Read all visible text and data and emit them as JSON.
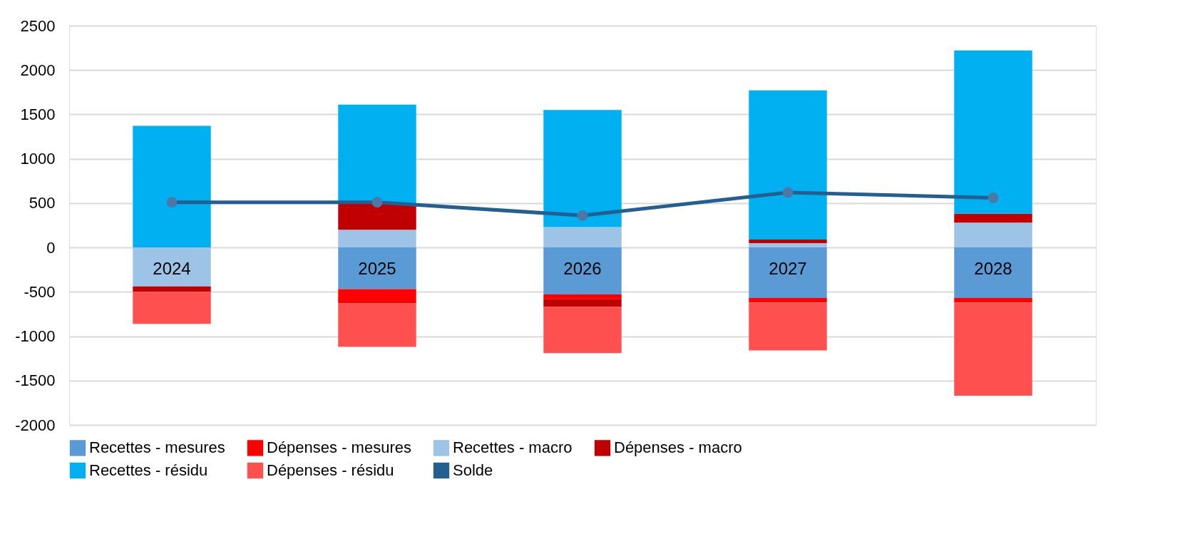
{
  "chart_data": {
    "type": "bar",
    "stacked": true,
    "categories": [
      "2024",
      "2025",
      "2026",
      "2027",
      "2028"
    ],
    "ylim": [
      -2000,
      2500
    ],
    "yticks": [
      -2000,
      -1500,
      -1000,
      -500,
      0,
      500,
      1000,
      1500,
      2000,
      2500
    ],
    "grid": "y",
    "legend": "bottom",
    "series": [
      {
        "name": "Recettes - mesures",
        "color": "#5b9bd5",
        "values": [
          0,
          -470,
          -530,
          -570,
          -570
        ]
      },
      {
        "name": "Dépenses - mesures",
        "color": "#ff0000",
        "values": [
          0,
          -160,
          -50,
          -50,
          -50
        ]
      },
      {
        "name": "Recettes - macro",
        "color": "#9dc3e6",
        "values": [
          -440,
          200,
          230,
          50,
          280
        ]
      },
      {
        "name": "Dépenses - macro",
        "color": "#c00000",
        "values": [
          -60,
          300,
          -90,
          40,
          100
        ]
      },
      {
        "name": "Recettes - résidu",
        "color": "#00b0f0",
        "values": [
          1370,
          1110,
          1320,
          1680,
          1840
        ]
      },
      {
        "name": "Dépenses - résidu",
        "color": "#ff5050",
        "values": [
          -360,
          -490,
          -520,
          -540,
          -1050
        ]
      },
      {
        "name": "Solde",
        "type": "line",
        "marker": "circle",
        "color": "#255e91",
        "values": [
          510,
          510,
          360,
          620,
          560
        ]
      }
    ]
  }
}
